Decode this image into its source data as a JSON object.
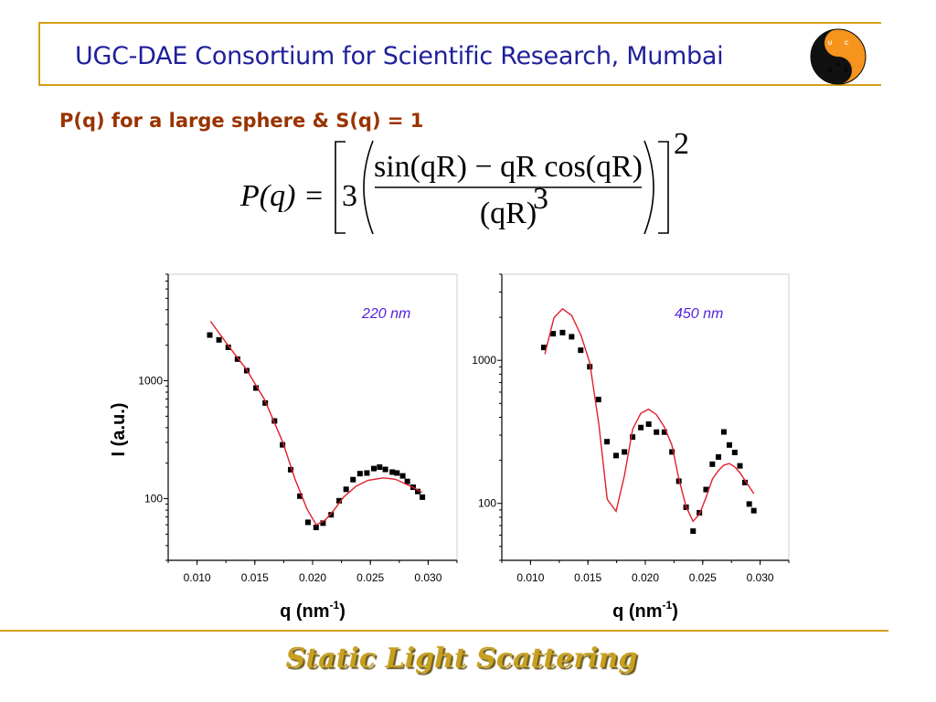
{
  "header": {
    "title": "UGC-DAE Consortium for Scientific Research, Mumbai",
    "logo_letters": {
      "top": "G",
      "left_top": "U",
      "right_top": "C",
      "mid": "A",
      "left_bottom": "D",
      "right_bottom": "E"
    }
  },
  "heading": "P(q) for a large sphere & S(q) = 1",
  "formula": {
    "lhs": "P(q) =",
    "coefficient": "3",
    "numerator": "sin(qR) − qR cos(qR)",
    "denominator": "(qR)",
    "denominator_exponent": "3",
    "outer_exponent": "2"
  },
  "footer": "Static Light Scattering",
  "colors": {
    "accent_line": "#d4a017",
    "fit_line": "#e0202a",
    "data_marker": "#000000",
    "annotation": "#5522dd",
    "title": "#1f1f9c",
    "heading": "#993300"
  },
  "chart_data": [
    {
      "type": "scatter",
      "annotation": "220 nm",
      "ylabel": "I (a.u.)",
      "xlabel": {
        "base": "q (nm",
        "sup": "-1",
        "end": ")"
      },
      "x_ticks": [
        "0.010",
        "0.015",
        "0.020",
        "0.025",
        "0.030"
      ],
      "y_ticks": [
        "100",
        "1000"
      ],
      "xlim": [
        0.0075,
        0.0325
      ],
      "ylim": [
        30,
        8000
      ],
      "yscale": "log",
      "grid": false,
      "series": [
        {
          "kind": "markers",
          "x": [
            0.0111,
            0.0119,
            0.0127,
            0.0135,
            0.0143,
            0.0151,
            0.0159,
            0.0167,
            0.0174,
            0.0181,
            0.0189,
            0.0196,
            0.0203,
            0.0209,
            0.0216,
            0.0223,
            0.0229,
            0.0235,
            0.0241,
            0.0247,
            0.0253,
            0.0258,
            0.0263,
            0.0269,
            0.0273,
            0.0278,
            0.0282,
            0.0287,
            0.0291,
            0.0295
          ],
          "y": [
            2440,
            2220,
            1920,
            1525,
            1217,
            867,
            647,
            456,
            286,
            176,
            105,
            63,
            57,
            62,
            73,
            96,
            120,
            145,
            163,
            165,
            180,
            185,
            177,
            168,
            165,
            156,
            140,
            125,
            115,
            103
          ]
        },
        {
          "kind": "line",
          "x": [
            0.01116,
            0.01268,
            0.01426,
            0.01584,
            0.01742,
            0.01847,
            0.01953,
            0.02032,
            0.02111,
            0.02189,
            0.02268,
            0.02374,
            0.02479,
            0.02611,
            0.02716,
            0.02821,
            0.029,
            0.02947
          ],
          "y": [
            3190,
            1995,
            1254,
            692,
            301,
            147,
            81,
            60,
            66,
            81,
            103,
            127,
            143,
            150,
            146,
            131,
            120,
            113
          ]
        }
      ]
    },
    {
      "type": "scatter",
      "annotation": "450 nm",
      "ylabel": "",
      "xlabel": {
        "base": "q (nm",
        "sup": "-1",
        "end": ")"
      },
      "x_ticks": [
        "0.010",
        "0.015",
        "0.020",
        "0.025",
        "0.030"
      ],
      "y_ticks": [
        "100",
        "1000"
      ],
      "xlim": [
        0.0075,
        0.0325
      ],
      "ylim": [
        40,
        4000
      ],
      "yscale": "log",
      "grid": false,
      "series": [
        {
          "kind": "markers",
          "x": [
            0.01116,
            0.01197,
            0.01279,
            0.01358,
            0.01437,
            0.01516,
            0.01592,
            0.01666,
            0.01745,
            0.01818,
            0.01889,
            0.01961,
            0.02029,
            0.02097,
            0.02166,
            0.02232,
            0.02292,
            0.02355,
            0.02416,
            0.02471,
            0.02529,
            0.02584,
            0.02637,
            0.02684,
            0.02732,
            0.02779,
            0.02824,
            0.02868,
            0.02905,
            0.02945
          ],
          "y": [
            1230,
            1535,
            1563,
            1462,
            1177,
            902,
            532,
            270,
            216,
            229,
            291,
            339,
            358,
            315,
            315,
            229,
            143,
            94,
            64,
            86,
            125,
            188,
            211,
            316,
            256,
            227,
            183,
            140,
            99,
            89
          ]
        },
        {
          "kind": "line",
          "x": [
            0.01124,
            0.01205,
            0.01279,
            0.01358,
            0.01442,
            0.01516,
            0.01595,
            0.01668,
            0.01745,
            0.01818,
            0.01889,
            0.01961,
            0.02029,
            0.02097,
            0.02166,
            0.02232,
            0.02292,
            0.02355,
            0.02416,
            0.02471,
            0.02529,
            0.02584,
            0.02637,
            0.02684,
            0.02732,
            0.02779,
            0.02824,
            0.02868,
            0.02905,
            0.02945
          ],
          "y": [
            1104,
            1990,
            2295,
            2060,
            1482,
            961,
            360,
            107,
            88,
            156,
            330,
            427,
            455,
            417,
            342,
            255,
            148,
            95,
            75,
            84,
            110,
            148,
            170,
            185,
            190,
            180,
            164,
            145,
            131,
            117
          ]
        }
      ]
    }
  ]
}
